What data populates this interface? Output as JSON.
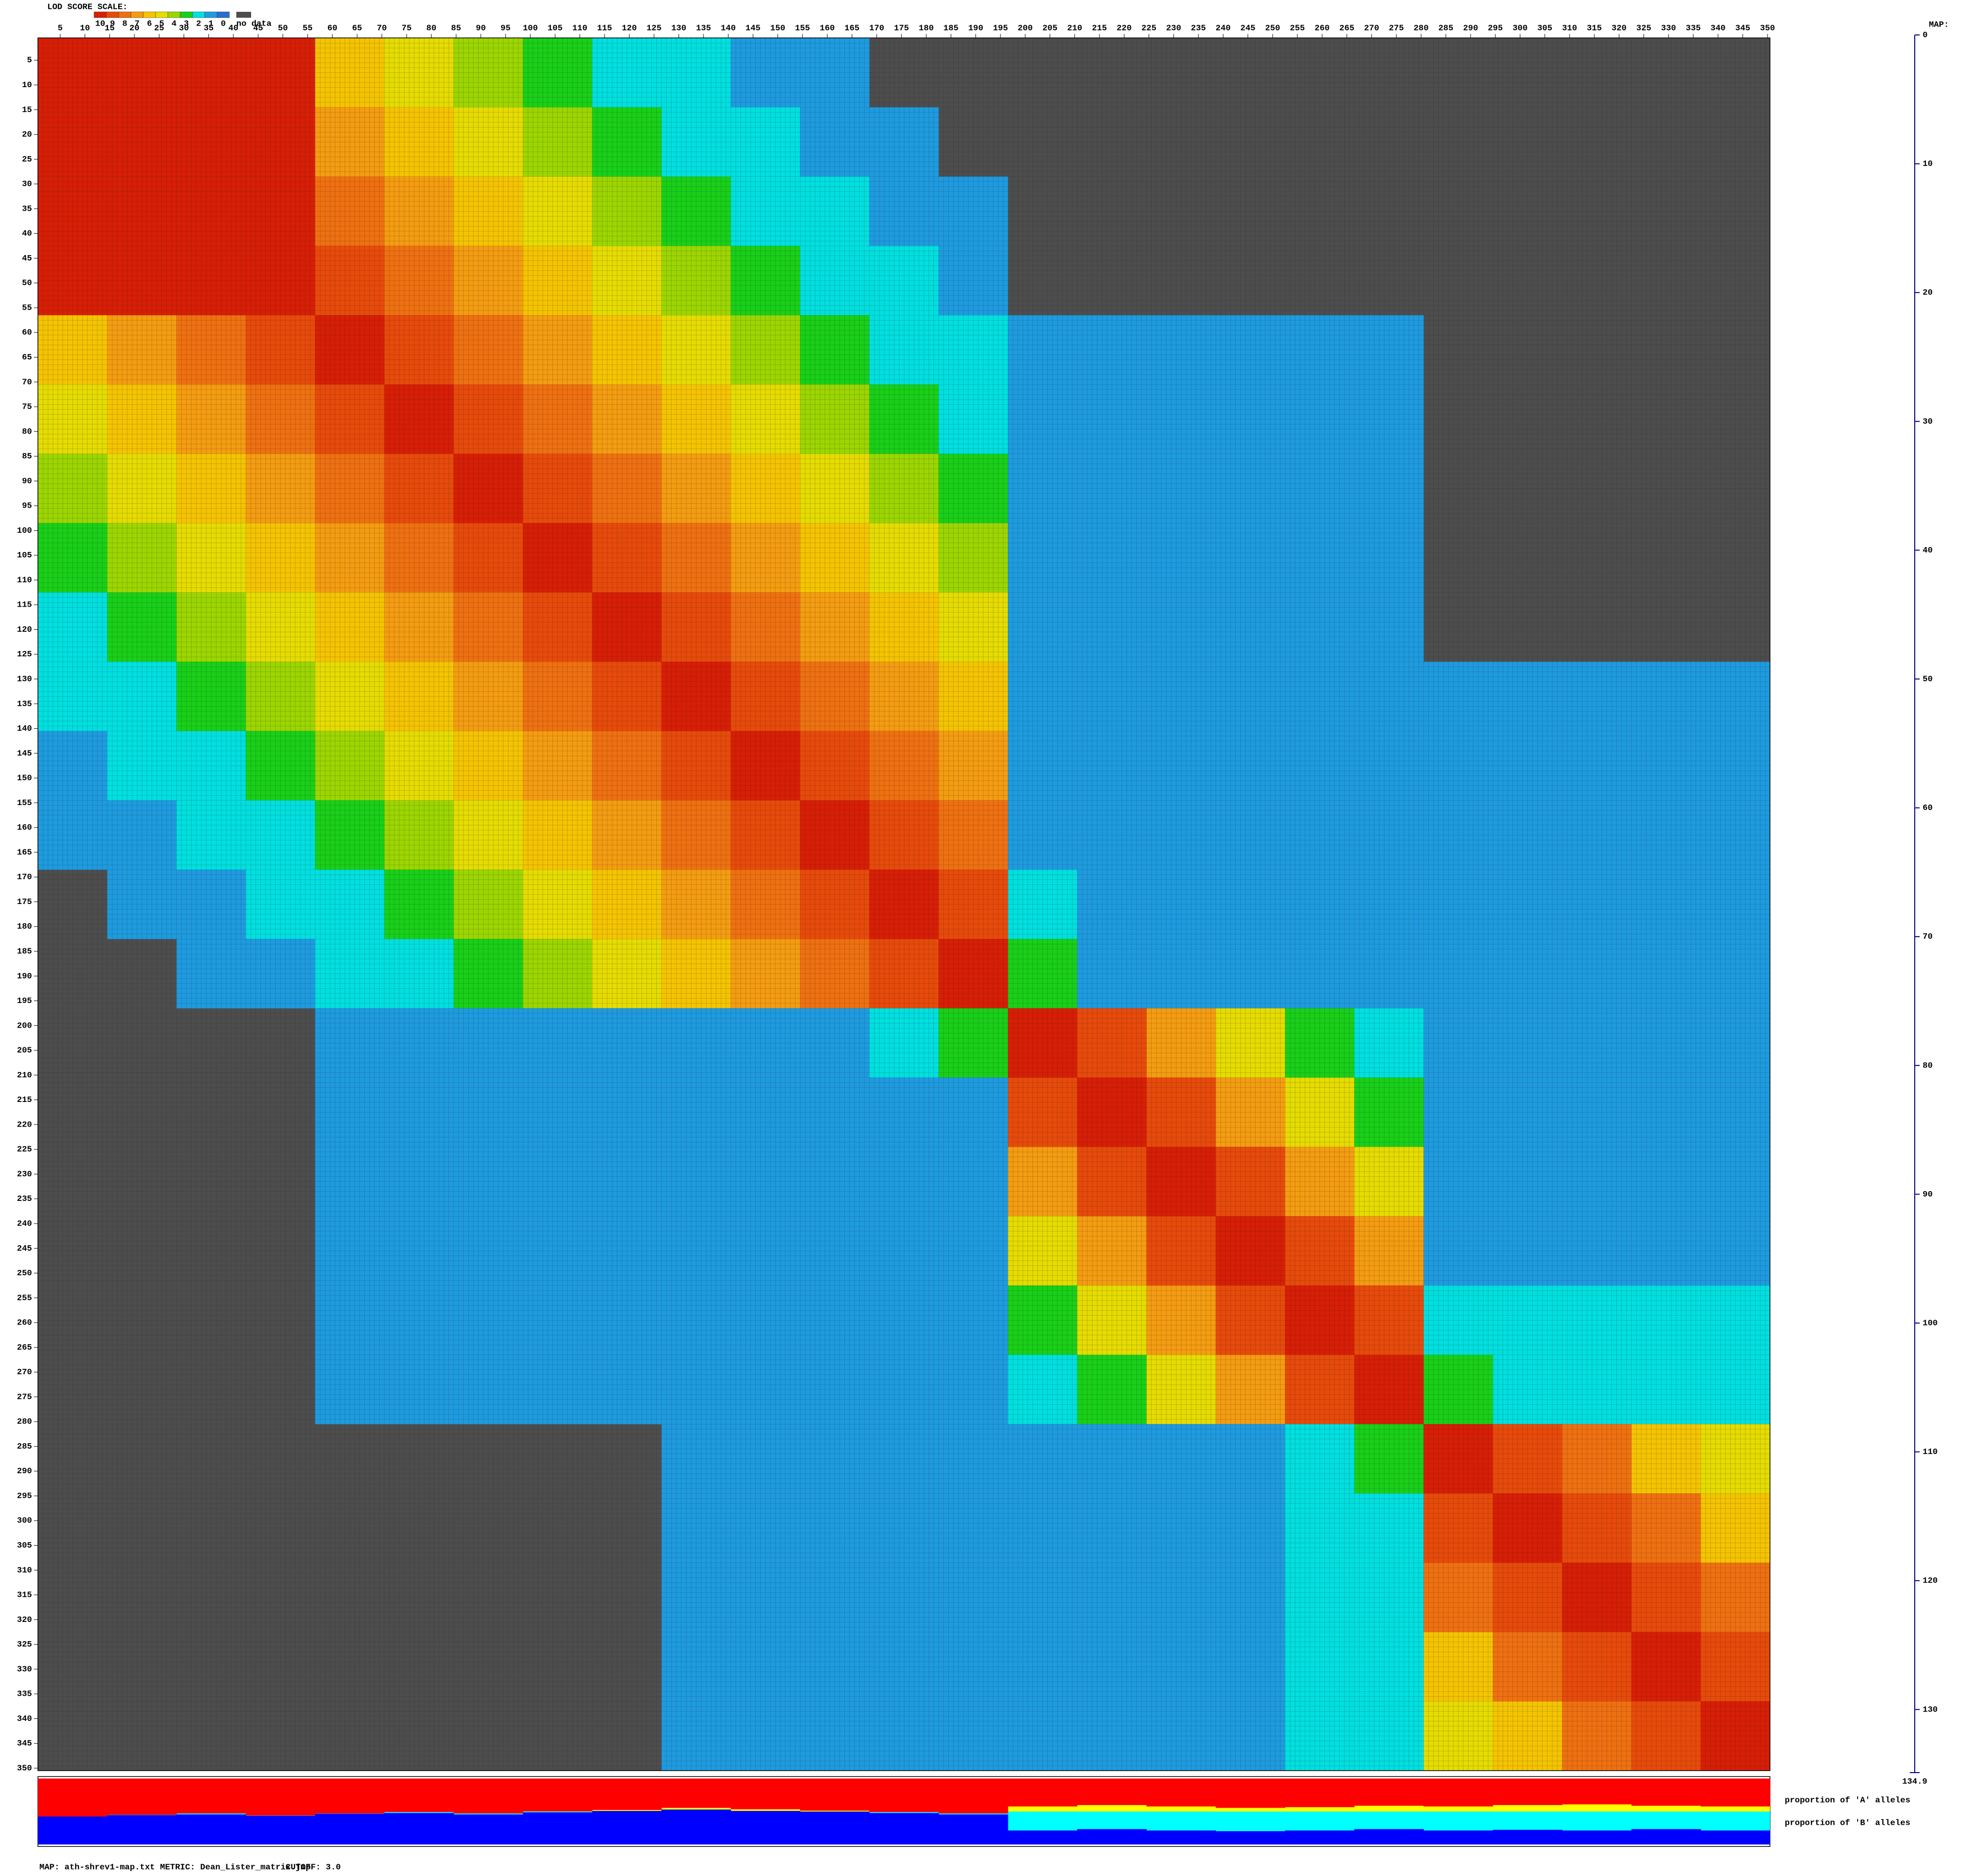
{
  "chart_data": {
    "type": "heatmap",
    "legend": {
      "title": "LOD SCORE SCALE:",
      "levels": [
        10,
        9,
        8,
        7,
        6,
        5,
        4,
        3,
        2,
        1,
        0
      ],
      "colors": [
        "#d81e05",
        "#e84a0a",
        "#f07010",
        "#f59c10",
        "#f5c400",
        "#e6dc00",
        "#9cd600",
        "#18d018",
        "#00e0e0",
        "#1e9be0",
        "#2b6cd0"
      ],
      "no_data_label": "no data",
      "no_data_color": "#4d4d4d"
    },
    "xlim": [
      0,
      350
    ],
    "ylim": [
      0,
      350
    ],
    "xticks": [
      5,
      10,
      15,
      20,
      25,
      30,
      35,
      40,
      45,
      50,
      55,
      60,
      65,
      70,
      75,
      80,
      85,
      90,
      95,
      100,
      105,
      110,
      115,
      120,
      125,
      130,
      135,
      140,
      145,
      150,
      155,
      160,
      165,
      170,
      175,
      180,
      185,
      190,
      195,
      200,
      205,
      210,
      215,
      220,
      225,
      230,
      235,
      240,
      245,
      250,
      255,
      260,
      265,
      270,
      275,
      280,
      285,
      290,
      295,
      300,
      305,
      310,
      315,
      320,
      325,
      330,
      335,
      340,
      345,
      350
    ],
    "yticks": [
      5,
      10,
      15,
      20,
      25,
      30,
      35,
      40,
      45,
      50,
      55,
      60,
      65,
      70,
      75,
      80,
      85,
      90,
      95,
      100,
      105,
      110,
      115,
      120,
      125,
      130,
      135,
      140,
      145,
      150,
      155,
      160,
      165,
      170,
      175,
      180,
      185,
      190,
      195,
      200,
      205,
      210,
      215,
      220,
      225,
      230,
      235,
      240,
      245,
      250,
      255,
      260,
      265,
      270,
      275,
      280,
      285,
      290,
      295,
      300,
      305,
      310,
      315,
      320,
      325,
      330,
      335,
      340,
      345,
      350
    ],
    "z": [
      [
        10,
        10,
        10,
        10,
        6,
        5,
        4,
        3,
        2,
        2,
        1,
        1,
        null,
        null,
        null,
        null,
        null,
        null,
        null,
        null,
        null,
        null,
        null,
        null,
        null
      ],
      [
        10,
        10,
        10,
        10,
        7,
        6,
        5,
        4,
        3,
        2,
        2,
        1,
        1,
        null,
        null,
        null,
        null,
        null,
        null,
        null,
        null,
        null,
        null,
        null,
        null
      ],
      [
        10,
        10,
        10,
        10,
        8,
        7,
        6,
        5,
        4,
        3,
        2,
        2,
        1,
        1,
        null,
        null,
        null,
        null,
        null,
        null,
        null,
        null,
        null,
        null,
        null
      ],
      [
        10,
        10,
        10,
        10,
        9,
        8,
        7,
        6,
        5,
        4,
        3,
        2,
        2,
        1,
        null,
        null,
        null,
        null,
        null,
        null,
        null,
        null,
        null,
        null,
        null
      ],
      [
        6,
        7,
        8,
        9,
        10,
        9,
        8,
        7,
        6,
        5,
        4,
        3,
        2,
        2,
        1,
        1,
        1,
        1,
        1,
        1,
        null,
        null,
        null,
        null,
        null
      ],
      [
        5,
        6,
        7,
        8,
        9,
        10,
        9,
        8,
        7,
        6,
        5,
        4,
        3,
        2,
        1,
        1,
        1,
        1,
        1,
        1,
        null,
        null,
        null,
        null,
        null
      ],
      [
        4,
        5,
        6,
        7,
        8,
        9,
        10,
        9,
        8,
        7,
        6,
        5,
        4,
        3,
        1,
        1,
        1,
        1,
        1,
        1,
        null,
        null,
        null,
        null,
        null
      ],
      [
        3,
        4,
        5,
        6,
        7,
        8,
        9,
        10,
        9,
        8,
        7,
        6,
        5,
        4,
        1,
        1,
        1,
        1,
        1,
        1,
        null,
        null,
        null,
        null,
        null
      ],
      [
        2,
        3,
        4,
        5,
        6,
        7,
        8,
        9,
        10,
        9,
        8,
        7,
        6,
        5,
        1,
        1,
        1,
        1,
        1,
        1,
        null,
        null,
        null,
        null,
        null
      ],
      [
        2,
        2,
        3,
        4,
        5,
        6,
        7,
        8,
        9,
        10,
        9,
        8,
        7,
        6,
        1,
        1,
        1,
        1,
        1,
        1,
        1,
        1,
        1,
        1,
        1
      ],
      [
        1,
        2,
        2,
        3,
        4,
        5,
        6,
        7,
        8,
        9,
        10,
        9,
        8,
        7,
        1,
        1,
        1,
        1,
        1,
        1,
        1,
        1,
        1,
        1,
        1
      ],
      [
        1,
        1,
        2,
        2,
        3,
        4,
        5,
        6,
        7,
        8,
        9,
        10,
        9,
        8,
        1,
        1,
        1,
        1,
        1,
        1,
        1,
        1,
        1,
        1,
        1
      ],
      [
        null,
        1,
        1,
        2,
        2,
        3,
        4,
        5,
        6,
        7,
        8,
        9,
        10,
        9,
        2,
        1,
        1,
        1,
        1,
        1,
        1,
        1,
        1,
        1,
        1
      ],
      [
        null,
        null,
        1,
        1,
        2,
        2,
        3,
        4,
        5,
        6,
        7,
        8,
        9,
        10,
        3,
        1,
        1,
        1,
        1,
        1,
        1,
        1,
        1,
        1,
        1
      ],
      [
        null,
        null,
        null,
        null,
        1,
        1,
        1,
        1,
        1,
        1,
        1,
        1,
        2,
        3,
        10,
        9,
        7,
        5,
        3,
        2,
        1,
        1,
        1,
        1,
        1
      ],
      [
        null,
        null,
        null,
        null,
        1,
        1,
        1,
        1,
        1,
        1,
        1,
        1,
        1,
        1,
        9,
        10,
        9,
        7,
        5,
        3,
        1,
        1,
        1,
        1,
        1
      ],
      [
        null,
        null,
        null,
        null,
        1,
        1,
        1,
        1,
        1,
        1,
        1,
        1,
        1,
        1,
        7,
        9,
        10,
        9,
        7,
        5,
        1,
        1,
        1,
        1,
        1
      ],
      [
        null,
        null,
        null,
        null,
        1,
        1,
        1,
        1,
        1,
        1,
        1,
        1,
        1,
        1,
        5,
        7,
        9,
        10,
        9,
        7,
        1,
        1,
        1,
        1,
        1
      ],
      [
        null,
        null,
        null,
        null,
        1,
        1,
        1,
        1,
        1,
        1,
        1,
        1,
        1,
        1,
        3,
        5,
        7,
        9,
        10,
        9,
        2,
        2,
        2,
        2,
        2
      ],
      [
        null,
        null,
        null,
        null,
        1,
        1,
        1,
        1,
        1,
        1,
        1,
        1,
        1,
        1,
        2,
        3,
        5,
        7,
        9,
        10,
        3,
        2,
        2,
        2,
        2
      ],
      [
        null,
        null,
        null,
        null,
        null,
        null,
        null,
        null,
        null,
        1,
        1,
        1,
        1,
        1,
        1,
        1,
        1,
        1,
        2,
        3,
        10,
        9,
        8,
        6,
        5
      ],
      [
        null,
        null,
        null,
        null,
        null,
        null,
        null,
        null,
        null,
        1,
        1,
        1,
        1,
        1,
        1,
        1,
        1,
        1,
        2,
        2,
        9,
        10,
        9,
        8,
        6
      ],
      [
        null,
        null,
        null,
        null,
        null,
        null,
        null,
        null,
        null,
        1,
        1,
        1,
        1,
        1,
        1,
        1,
        1,
        1,
        2,
        2,
        8,
        9,
        10,
        9,
        8
      ],
      [
        null,
        null,
        null,
        null,
        null,
        null,
        null,
        null,
        null,
        1,
        1,
        1,
        1,
        1,
        1,
        1,
        1,
        1,
        2,
        2,
        6,
        8,
        9,
        10,
        9
      ],
      [
        null,
        null,
        null,
        null,
        null,
        null,
        null,
        null,
        null,
        1,
        1,
        1,
        1,
        1,
        1,
        1,
        1,
        1,
        2,
        2,
        5,
        6,
        8,
        9,
        10
      ]
    ],
    "allele_proportions": {
      "ylim": [
        0,
        1
      ],
      "a_label": "proportion of 'A' alleles",
      "a_color": "#ff0000",
      "a": [
        0.55,
        0.52,
        0.5,
        0.53,
        0.5,
        0.48,
        0.5,
        0.47,
        0.45,
        0.42,
        0.44,
        0.46,
        0.48,
        0.5,
        0.4,
        0.38,
        0.4,
        0.42,
        0.41,
        0.39,
        0.4,
        0.38,
        0.37,
        0.39,
        0.4
      ],
      "b_label": "proportion of 'B' alleles",
      "b_color": "#0000ff",
      "b": [
        0.4,
        0.42,
        0.43,
        0.41,
        0.44,
        0.45,
        0.43,
        0.46,
        0.48,
        0.5,
        0.48,
        0.47,
        0.45,
        0.43,
        0.2,
        0.22,
        0.2,
        0.19,
        0.2,
        0.22,
        0.2,
        0.21,
        0.2,
        0.22,
        0.2
      ]
    },
    "map": {
      "title": "MAP:",
      "lim": [
        0,
        134.9
      ],
      "ticks": [
        0,
        10,
        20,
        30,
        40,
        50,
        60,
        70,
        80,
        90,
        100,
        110,
        120,
        130
      ]
    },
    "footer": {
      "map": "MAP: ath-shrev1-map.txt",
      "metric": "METRIC: Dean_Lister_matrix.jmp",
      "cutoff": "CUTOFF: 3.0"
    }
  }
}
